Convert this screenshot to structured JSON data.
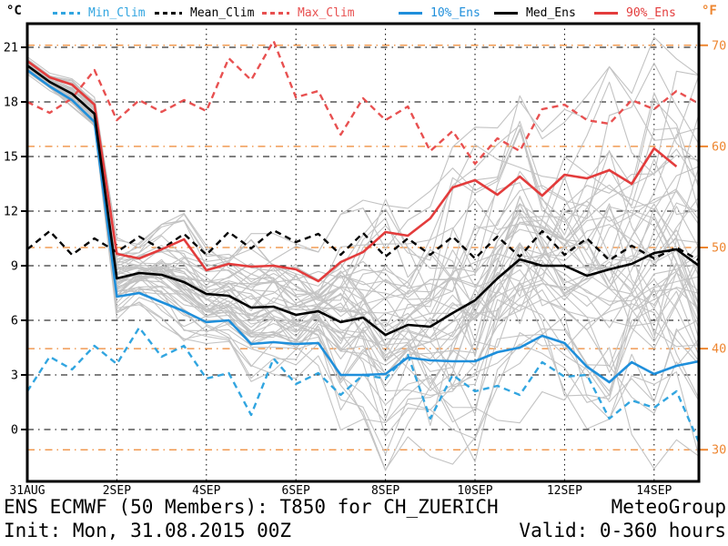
{
  "header": {
    "left_unit": "°C",
    "right_unit": "°F",
    "legend": [
      {
        "label": "Min_Clim",
        "color": "#31A5E0",
        "style": "dashed"
      },
      {
        "label": "Mean_Clim",
        "color": "#000000",
        "style": "dashed"
      },
      {
        "label": "Max_Clim",
        "color": "#E85050",
        "style": "dashed"
      },
      {
        "label": "10%_Ens",
        "color": "#1F8FDB",
        "style": "solid"
      },
      {
        "label": "Med_Ens",
        "color": "#000000",
        "style": "solid"
      },
      {
        "label": "90%_Ens",
        "color": "#E33C3C",
        "style": "solid"
      }
    ]
  },
  "footer": {
    "title": "ENS ECMWF (50 Members): T850 for CH_ZUERICH",
    "brand": "MeteoGroup",
    "init": "Init: Mon, 31.08.2015 00Z",
    "valid": "Valid: 0-360 hours"
  },
  "chart_data": {
    "type": "line",
    "title": "ENS ECMWF (50 Members): T850 for CH_ZUERICH",
    "xlabel": "",
    "ylabel_left": "°C",
    "ylabel_right": "°F",
    "x_hours": [
      0,
      12,
      24,
      36,
      48,
      60,
      72,
      84,
      96,
      108,
      120,
      132,
      144,
      156,
      168,
      180,
      192,
      204,
      216,
      228,
      240,
      252,
      264,
      276,
      288,
      300,
      312,
      324,
      336,
      348,
      360
    ],
    "x_tick_hours": [
      0,
      48,
      96,
      144,
      192,
      240,
      288,
      336
    ],
    "x_tick_labels": [
      "31AUG",
      "2SEP",
      "4SEP",
      "6SEP",
      "8SEP",
      "10SEP",
      "12SEP",
      "14SEP"
    ],
    "y_ticks_c": [
      0,
      3,
      6,
      9,
      12,
      15,
      18,
      21
    ],
    "y_ticks_f": [
      30,
      40,
      50,
      60,
      70
    ],
    "ylim_c": [
      -2.85,
      22.3
    ],
    "grid": {
      "c_line_color": "#000000",
      "f_line_color": "#EE8630",
      "vertical_color": "#000000"
    },
    "series": [
      {
        "name": "Min_Clim",
        "color": "#31A5E0",
        "dash": true,
        "width": 2.4,
        "values": [
          2.1,
          4.0,
          3.3,
          4.6,
          3.6,
          5.6,
          4.0,
          4.6,
          2.8,
          3.1,
          0.8,
          3.9,
          2.5,
          3.1,
          1.9,
          3.0,
          2.8,
          4.1,
          0.6,
          3.0,
          2.1,
          2.4,
          1.9,
          3.7,
          2.9,
          3.0,
          0.6,
          1.6,
          1.2,
          2.1,
          -0.7
        ]
      },
      {
        "name": "Mean_Clim",
        "color": "#000000",
        "dash": true,
        "width": 2.4,
        "values": [
          9.9,
          10.9,
          9.6,
          10.5,
          9.75,
          10.6,
          9.9,
          10.75,
          9.6,
          10.85,
          9.95,
          10.95,
          10.3,
          10.75,
          9.6,
          10.8,
          9.5,
          10.5,
          9.6,
          10.6,
          9.4,
          10.6,
          9.5,
          10.9,
          9.6,
          10.5,
          9.3,
          10.1,
          9.4,
          10.0,
          9.3
        ]
      },
      {
        "name": "Max_Clim",
        "color": "#E85050",
        "dash": true,
        "width": 2.4,
        "values": [
          18.0,
          17.4,
          18.2,
          19.75,
          17.0,
          18.1,
          17.45,
          18.1,
          17.5,
          20.4,
          19.2,
          21.35,
          18.25,
          18.6,
          16.2,
          18.2,
          17.0,
          17.75,
          15.3,
          16.4,
          14.6,
          16.0,
          15.3,
          17.6,
          17.85,
          17.0,
          16.8,
          18.1,
          17.6,
          18.6,
          17.9
        ]
      },
      {
        "name": "10%_Ens",
        "color": "#1F8FDB",
        "dash": false,
        "width": 2.6,
        "values": [
          19.75,
          18.85,
          18.1,
          16.9,
          7.3,
          7.5,
          7.0,
          6.5,
          5.9,
          6.0,
          4.7,
          4.8,
          4.7,
          4.75,
          3.0,
          3.0,
          3.05,
          3.95,
          3.8,
          3.75,
          3.75,
          4.25,
          4.5,
          5.15,
          4.75,
          3.45,
          2.6,
          3.7,
          3.05,
          3.5,
          3.75
        ]
      },
      {
        "name": "90%_Ens",
        "color": "#E33C3C",
        "dash": false,
        "width": 2.6,
        "values": [
          20.25,
          19.35,
          18.95,
          17.85,
          9.65,
          9.4,
          9.9,
          10.45,
          8.75,
          9.1,
          8.95,
          9.0,
          8.8,
          8.15,
          9.2,
          9.75,
          10.85,
          10.65,
          11.6,
          13.3,
          13.7,
          12.9,
          13.9,
          12.85,
          14.0,
          13.8,
          14.25,
          13.5,
          15.45,
          14.45,
          null
        ]
      },
      {
        "name": "Med_Ens",
        "color": "#000000",
        "dash": false,
        "width": 2.6,
        "values": [
          20.0,
          19.1,
          18.45,
          17.35,
          8.3,
          8.6,
          8.5,
          8.1,
          7.45,
          7.35,
          6.7,
          6.75,
          6.3,
          6.5,
          5.9,
          6.15,
          5.2,
          5.75,
          5.65,
          6.4,
          7.1,
          8.3,
          9.35,
          9.0,
          9.0,
          8.45,
          8.8,
          9.1,
          9.7,
          9.9,
          9.0
        ]
      }
    ],
    "ensemble": {
      "count": 50,
      "color": "#C3C3C3",
      "width": 1.1,
      "seed": 7,
      "note": "50 individual ECMWF ensemble member traces (gray spaghetti)"
    }
  }
}
